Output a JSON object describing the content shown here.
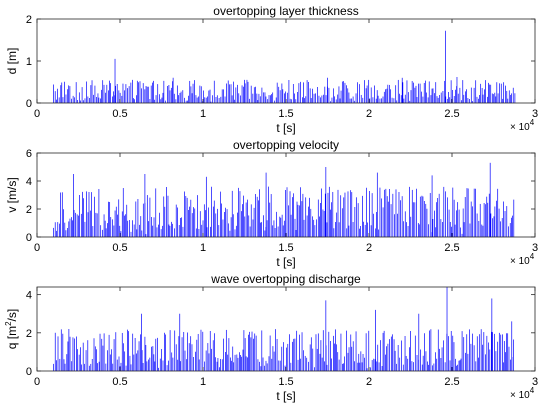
{
  "chart_data": [
    {
      "type": "line",
      "title": "overtopping layer thickness",
      "xlabel": "t [s]",
      "ylabel": "d [m]",
      "xlim": [
        0,
        30000
      ],
      "ylim": [
        0,
        2
      ],
      "xticks": [
        0,
        5000,
        10000,
        15000,
        20000,
        25000,
        30000
      ],
      "xtick_labels": [
        "0",
        "0.5",
        "1",
        "1.5",
        "2",
        "2.5",
        "3"
      ],
      "yticks": [
        0,
        1,
        2
      ],
      "ytick_labels": [
        "0",
        "1",
        "2"
      ],
      "x_multiplier_base": "× 10",
      "x_multiplier_exp": "4",
      "color": "#0000ff",
      "data_range": [
        1000,
        28800
      ],
      "baseline_max": 0.55,
      "peaks": [
        {
          "x": 4700,
          "y": 1.05
        },
        {
          "x": 8200,
          "y": 0.6
        },
        {
          "x": 12500,
          "y": 0.55
        },
        {
          "x": 17500,
          "y": 0.6
        },
        {
          "x": 22000,
          "y": 0.6
        },
        {
          "x": 24600,
          "y": 1.72
        },
        {
          "x": 25300,
          "y": 0.62
        }
      ]
    },
    {
      "type": "line",
      "title": "overtopping velocity",
      "xlabel": "t [s]",
      "ylabel": "v [m/s]",
      "xlim": [
        0,
        30000
      ],
      "ylim": [
        0,
        6
      ],
      "xticks": [
        0,
        5000,
        10000,
        15000,
        20000,
        25000,
        30000
      ],
      "xtick_labels": [
        "0",
        "0.5",
        "1",
        "1.5",
        "2",
        "2.5",
        "3"
      ],
      "yticks": [
        0,
        2,
        4,
        6
      ],
      "ytick_labels": [
        "0",
        "2",
        "4",
        "6"
      ],
      "x_multiplier_base": "× 10",
      "x_multiplier_exp": "4",
      "color": "#0000ff",
      "data_range": [
        1000,
        28800
      ],
      "baseline_max": 3.6,
      "peaks": [
        {
          "x": 2200,
          "y": 4.5
        },
        {
          "x": 6500,
          "y": 4.5
        },
        {
          "x": 10200,
          "y": 4.3
        },
        {
          "x": 13800,
          "y": 4.6
        },
        {
          "x": 17400,
          "y": 5.0
        },
        {
          "x": 20500,
          "y": 4.6
        },
        {
          "x": 23800,
          "y": 4.4
        },
        {
          "x": 27300,
          "y": 5.3
        }
      ]
    },
    {
      "type": "line",
      "title": "wave overtopping discharge",
      "xlabel": "t [s]",
      "ylabel_base": "q [m",
      "ylabel_sup": "2",
      "ylabel_tail": "/s]",
      "xlim": [
        0,
        30000
      ],
      "ylim": [
        0,
        4.4
      ],
      "xticks": [
        0,
        5000,
        10000,
        15000,
        20000,
        25000,
        30000
      ],
      "xtick_labels": [
        "0",
        "0.5",
        "1",
        "1.5",
        "2",
        "2.5",
        "3"
      ],
      "yticks": [
        0,
        2,
        4
      ],
      "ytick_labels": [
        "0",
        "2",
        "4"
      ],
      "x_multiplier_base": "× 10",
      "x_multiplier_exp": "4",
      "color": "#0000ff",
      "data_range": [
        1000,
        28800
      ],
      "baseline_max": 2.2,
      "peaks": [
        {
          "x": 6300,
          "y": 3.0
        },
        {
          "x": 8600,
          "y": 3.0
        },
        {
          "x": 17400,
          "y": 3.7
        },
        {
          "x": 20400,
          "y": 3.2
        },
        {
          "x": 23000,
          "y": 3.0
        },
        {
          "x": 24700,
          "y": 4.4
        },
        {
          "x": 27400,
          "y": 3.8
        },
        {
          "x": 28600,
          "y": 2.6
        }
      ]
    }
  ]
}
